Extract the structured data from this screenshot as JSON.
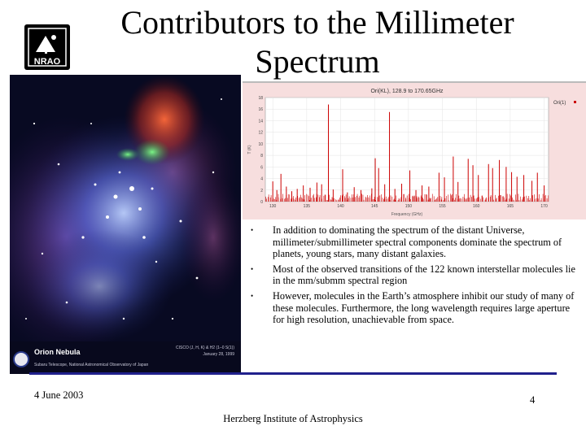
{
  "slide": {
    "title": "Contributors to the Millimeter Spectrum",
    "logo_text": "NRAO",
    "date": "4 June 2003",
    "page_number": "4",
    "footer": "Herzberg Institute of Astrophysics"
  },
  "nebula_image": {
    "caption_title": "Orion Nebula",
    "caption_credit": "Subaru Telescope, National Astronomical Observatory of Japan",
    "caption_right": "CISCO (J, H, K) & H2 (1–0 S(1))",
    "caption_date": "January 28, 1999"
  },
  "bullets": [
    "In addition to dominating the spectrum of the distant Universe, millimeter/submillimeter spectral components dominate the spectrum of planets, young stars, many distant galaxies.",
    "Most of the observed transitions of the 122 known interstellar molecules lie in the mm/submm spectral region",
    "However, molecules in the Earth’s atmosphere inhibit our study of many of these molecules.  Furthermore, the long wavelength requires large aperture for high resolution, unachievable from space."
  ],
  "colors": {
    "accent_line": "#20208c",
    "spectrum_line": "#cc0000",
    "spectrum_background": "#f7dede"
  },
  "chart_data": {
    "type": "line",
    "title": "Ori(KL), 128.9 to 170.65GHz",
    "xlabel": "Frequency (GHz)",
    "ylabel": "T (K)",
    "legend": "Ori(1)",
    "legend_position": "top-right",
    "xlim": [
      128.9,
      170.65
    ],
    "ylim": [
      0,
      18
    ],
    "x_ticks": [
      130,
      135,
      140,
      145,
      150,
      155,
      160,
      165,
      170
    ],
    "y_ticks": [
      0,
      2,
      4,
      6,
      8,
      10,
      12,
      14,
      16,
      18
    ],
    "grid": true,
    "peaks": [
      {
        "x": 130.0,
        "y": 3.5
      },
      {
        "x": 130.6,
        "y": 2.0
      },
      {
        "x": 131.2,
        "y": 4.8
      },
      {
        "x": 132.0,
        "y": 2.6
      },
      {
        "x": 132.8,
        "y": 1.8
      },
      {
        "x": 133.6,
        "y": 2.2
      },
      {
        "x": 134.5,
        "y": 2.8
      },
      {
        "x": 135.5,
        "y": 2.4
      },
      {
        "x": 136.5,
        "y": 3.3
      },
      {
        "x": 137.2,
        "y": 3.0
      },
      {
        "x": 138.2,
        "y": 16.8
      },
      {
        "x": 138.9,
        "y": 2.1
      },
      {
        "x": 140.3,
        "y": 5.6
      },
      {
        "x": 141.0,
        "y": 1.6
      },
      {
        "x": 142.0,
        "y": 2.5
      },
      {
        "x": 143.0,
        "y": 2.0
      },
      {
        "x": 144.6,
        "y": 2.3
      },
      {
        "x": 145.1,
        "y": 7.5
      },
      {
        "x": 145.6,
        "y": 5.8
      },
      {
        "x": 146.5,
        "y": 3.0
      },
      {
        "x": 147.2,
        "y": 15.5
      },
      {
        "x": 148.0,
        "y": 2.2
      },
      {
        "x": 149.0,
        "y": 3.1
      },
      {
        "x": 150.2,
        "y": 5.4
      },
      {
        "x": 151.1,
        "y": 2.0
      },
      {
        "x": 152.0,
        "y": 2.8
      },
      {
        "x": 153.0,
        "y": 2.6
      },
      {
        "x": 154.5,
        "y": 5.0
      },
      {
        "x": 155.3,
        "y": 4.2
      },
      {
        "x": 156.6,
        "y": 7.8
      },
      {
        "x": 157.3,
        "y": 3.4
      },
      {
        "x": 158.8,
        "y": 7.4
      },
      {
        "x": 159.5,
        "y": 6.3
      },
      {
        "x": 160.3,
        "y": 4.6
      },
      {
        "x": 161.8,
        "y": 6.5
      },
      {
        "x": 162.4,
        "y": 5.8
      },
      {
        "x": 163.4,
        "y": 7.2
      },
      {
        "x": 164.4,
        "y": 6.0
      },
      {
        "x": 165.2,
        "y": 5.1
      },
      {
        "x": 166.0,
        "y": 4.3
      },
      {
        "x": 167.0,
        "y": 4.6
      },
      {
        "x": 168.2,
        "y": 3.6
      },
      {
        "x": 169.0,
        "y": 5.0
      },
      {
        "x": 170.0,
        "y": 2.8
      }
    ],
    "baseline_level": 0.8
  }
}
